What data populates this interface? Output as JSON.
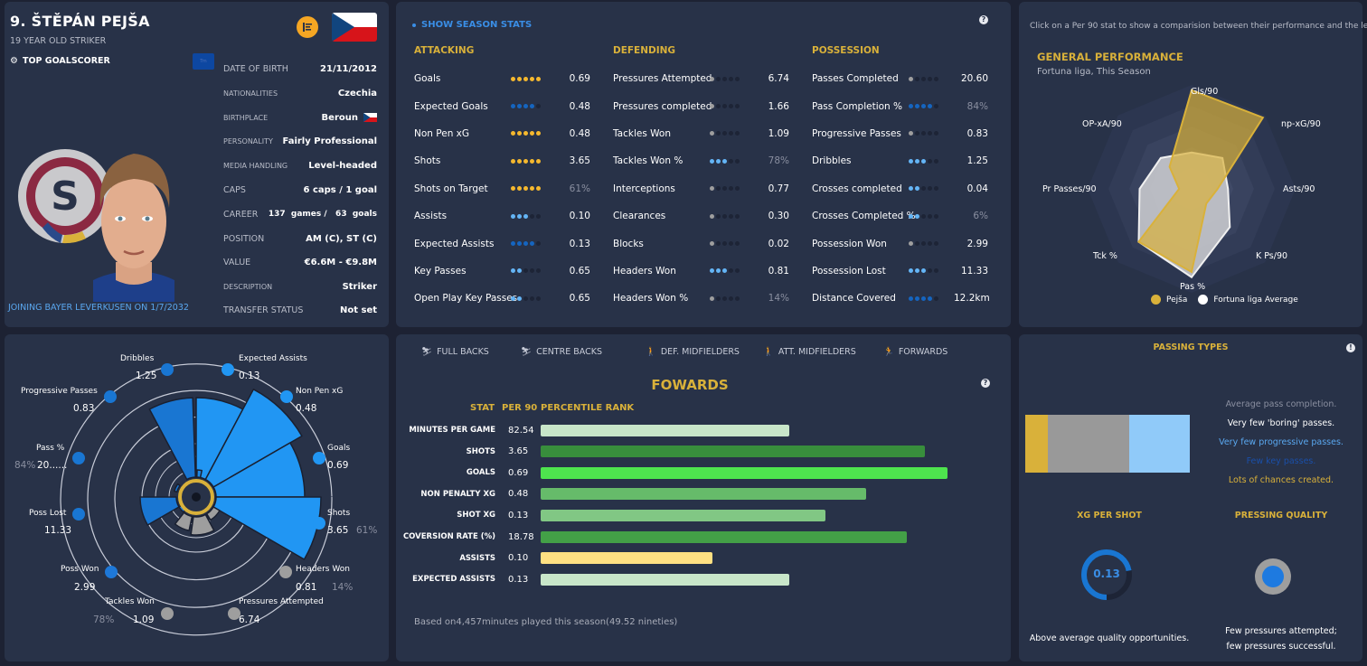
{
  "profile": {
    "name": "9. ŠTĚPÁN PEJŠA",
    "subtitle": "19 YEAR OLD STRIKER",
    "award": "TOP GOALSCORER",
    "tm_badge": "Trn",
    "joining": "JOINING BAYER LEVERKUSEN ON 1/7/2032",
    "info": [
      {
        "label": "DATE OF BIRTH",
        "value": "21/11/2012"
      },
      {
        "label": "NATIONALITIES",
        "value": "Czechia"
      },
      {
        "label": "BIRTHPLACE",
        "value": "Beroun"
      },
      {
        "label": "PERSONALITY",
        "value": "Fairly Professional"
      },
      {
        "label": "MEDIA HANDLING",
        "value": "Level-headed"
      },
      {
        "label": "CAPS",
        "value": "6 caps / 1 goal"
      },
      {
        "label": "CAREER",
        "value": "137  games /   63  goals"
      },
      {
        "label": "POSITION",
        "value": "AM (C), ST (C)"
      },
      {
        "label": "VALUE",
        "value": "€6.6M - €9.8M"
      },
      {
        "label": "DESCRIPTION",
        "value": "Striker"
      },
      {
        "label": "TRANSFER STATUS",
        "value": "Not set"
      }
    ]
  },
  "season": {
    "toggle_label": "SHOW SEASON STATS",
    "help": "?",
    "columns": [
      {
        "title": "ATTACKING",
        "rows": [
          {
            "label": "Goals",
            "dots": 5,
            "color": "#f5b82e",
            "value": "0.69",
            "pct": false
          },
          {
            "label": "Expected Goals",
            "dots": 4,
            "color": "#1565c0",
            "value": "0.48",
            "pct": false
          },
          {
            "label": "Non Pen xG",
            "dots": 5,
            "color": "#f5b82e",
            "value": "0.48",
            "pct": false
          },
          {
            "label": "Shots",
            "dots": 5,
            "color": "#f5b82e",
            "value": "3.65",
            "pct": false
          },
          {
            "label": "Shots on Target",
            "dots": 5,
            "color": "#f5b82e",
            "value": "61%",
            "pct": true
          },
          {
            "label": "Assists",
            "dots": 3,
            "color": "#64b5f6",
            "value": "0.10",
            "pct": false
          },
          {
            "label": "Expected Assists",
            "dots": 4,
            "color": "#1565c0",
            "value": "0.13",
            "pct": false
          },
          {
            "label": "Key Passes",
            "dots": 2,
            "color": "#64b5f6",
            "value": "0.65",
            "pct": false
          },
          {
            "label": "Open Play Key Passes",
            "dots": 2,
            "color": "#64b5f6",
            "value": "0.65",
            "pct": false
          }
        ]
      },
      {
        "title": "DEFENDING",
        "rows": [
          {
            "label": "Pressures Attempted",
            "dots": 1,
            "color": "#9e9e9e",
            "value": "6.74",
            "pct": false
          },
          {
            "label": "Pressures completed",
            "dots": 1,
            "color": "#9e9e9e",
            "value": "1.66",
            "pct": false
          },
          {
            "label": "Tackles Won",
            "dots": 1,
            "color": "#9e9e9e",
            "value": "1.09",
            "pct": false
          },
          {
            "label": "Tackles Won %",
            "dots": 3,
            "color": "#64b5f6",
            "value": "78%",
            "pct": true
          },
          {
            "label": "Interceptions",
            "dots": 1,
            "color": "#9e9e9e",
            "value": "0.77",
            "pct": false
          },
          {
            "label": "Clearances",
            "dots": 1,
            "color": "#9e9e9e",
            "value": "0.30",
            "pct": false
          },
          {
            "label": "Blocks",
            "dots": 1,
            "color": "#9e9e9e",
            "value": "0.02",
            "pct": false
          },
          {
            "label": "Headers Won",
            "dots": 3,
            "color": "#64b5f6",
            "value": "0.81",
            "pct": false
          },
          {
            "label": "Headers Won %",
            "dots": 1,
            "color": "#9e9e9e",
            "value": "14%",
            "pct": true
          }
        ]
      },
      {
        "title": "POSSESSION",
        "rows": [
          {
            "label": "Passes Completed",
            "dots": 1,
            "color": "#9e9e9e",
            "value": "20.60",
            "pct": false
          },
          {
            "label": "Pass Completion %",
            "dots": 4,
            "color": "#1565c0",
            "value": "84%",
            "pct": true
          },
          {
            "label": "Progressive Passes",
            "dots": 1,
            "color": "#9e9e9e",
            "value": "0.83",
            "pct": false
          },
          {
            "label": "Dribbles",
            "dots": 3,
            "color": "#64b5f6",
            "value": "1.25",
            "pct": false
          },
          {
            "label": "Crosses completed",
            "dots": 2,
            "color": "#64b5f6",
            "value": "0.04",
            "pct": false
          },
          {
            "label": "Crosses Completed %",
            "dots": 2,
            "color": "#64b5f6",
            "value": "6%",
            "pct": true
          },
          {
            "label": "Possession Won",
            "dots": 1,
            "color": "#9e9e9e",
            "value": "2.99",
            "pct": false
          },
          {
            "label": "Possession Lost",
            "dots": 3,
            "color": "#64b5f6",
            "value": "11.33",
            "pct": false
          },
          {
            "label": "Distance Covered",
            "dots": 4,
            "color": "#1565c0",
            "value": "12.2km",
            "pct": false
          }
        ]
      }
    ]
  },
  "general": {
    "hint": "Click on a Per 90 stat to show a comparision between their performance and the league.",
    "title": "GENERAL PERFORMANCE",
    "subtitle": "Fortuna liga, This Season",
    "legend": [
      {
        "label": "Pejša",
        "color": "#d9b13a"
      },
      {
        "label": "Fortuna liga Average",
        "color": "#ffffff"
      }
    ]
  },
  "polar": {
    "items": [
      {
        "label": "Goals",
        "value": "0.69",
        "pct": ""
      },
      {
        "label": "Shots",
        "value": "3.65",
        "pct": "61%"
      },
      {
        "label": "Headers Won",
        "value": "0.81",
        "pct": "14%"
      },
      {
        "label": "Pressures Attempted",
        "value": "6.74",
        "pct": ""
      },
      {
        "label": "Tackles Won",
        "value": "1.09",
        "pct": "78%"
      },
      {
        "label": "Poss Won",
        "value": "2.99",
        "pct": ""
      },
      {
        "label": "Poss Lost",
        "value": "11.33",
        "pct": ""
      },
      {
        "label": "Pass %",
        "value": "20......",
        "pct": "84%"
      },
      {
        "label": "Progressive Passes",
        "value": "0.83",
        "pct": ""
      },
      {
        "label": "Dribbles",
        "value": "1.25",
        "pct": ""
      },
      {
        "label": "Expected Assists",
        "value": "0.13",
        "pct": ""
      },
      {
        "label": "Non Pen xG",
        "value": "0.48",
        "pct": ""
      }
    ],
    "center_icon": "?"
  },
  "positional": {
    "tabs": [
      {
        "label": "FULL BACKS",
        "icon": "sliding-tackle-icon"
      },
      {
        "label": "CENTRE BACKS",
        "icon": "sliding-tackle-icon"
      },
      {
        "label": "DEF. MIDFIELDERS",
        "icon": "player-icon"
      },
      {
        "label": "ATT. MIDFIELDERS",
        "icon": "player-icon"
      },
      {
        "label": "FORWARDS",
        "icon": "running-icon"
      }
    ],
    "title": "FOWARDS",
    "help": "?",
    "head_stat": "STAT",
    "head_per90": "PER 90",
    "head_rank": "PERCENTILE RANK",
    "footer": "Based on4,457minutes played this season(49.52 nineties)"
  },
  "chart_data": {
    "type": "bar",
    "title": "FOWARDS",
    "xlabel": "PERCENTILE RANK",
    "ylabel": "STAT",
    "xlim": [
      0,
      100
    ],
    "categories": [
      "MINUTES PER GAME",
      "SHOTS",
      "GOALS",
      "NON PENALTY XG",
      "SHOT XG",
      "COVERSION RATE (%)",
      "ASSISTS",
      "EXPECTED ASSISTS"
    ],
    "per90": [
      "82.54",
      "3.65",
      "0.69",
      "0.48",
      "0.13",
      "18.78",
      "0.10",
      "0.13"
    ],
    "values": [
      55,
      85,
      90,
      72,
      63,
      81,
      38,
      55
    ],
    "colors": [
      "#c8e6c9",
      "#388e3c",
      "#4ee44e",
      "#66bb6a",
      "#81c784",
      "#43a047",
      "#ffe082",
      "#c8e6c9"
    ]
  },
  "radar": {
    "axes": [
      "Gls/90",
      "np-xG/90",
      "Asts/90",
      "K Ps/90",
      "Pas %",
      "Tck %",
      "Pr Passes/90",
      "OP-xA/90"
    ],
    "player": [
      0.95,
      0.97,
      0.25,
      0.2,
      0.8,
      0.72,
      0.12,
      0.3
    ],
    "league": [
      0.35,
      0.42,
      0.35,
      0.52,
      0.85,
      0.72,
      0.5,
      0.42
    ]
  },
  "passing": {
    "title": "PASSING TYPES",
    "help": "!",
    "segments": [
      {
        "share": 0.14,
        "color": "#d9b13a"
      },
      {
        "share": 0.49,
        "color": "#999999"
      },
      {
        "share": 0.37,
        "color": "#90caf9"
      }
    ],
    "descriptions": [
      {
        "text": "Average pass completion.",
        "color": "#8a8fa0"
      },
      {
        "text": "Very few 'boring' passes.",
        "color": "#ffffff"
      },
      {
        "text": "Very few progressive passes.",
        "color": "#5aa8f0"
      },
      {
        "text": "Few key passes.",
        "color": "#1a4fa8"
      },
      {
        "text": "Lots of chances created.",
        "color": "#d9b13a"
      }
    ],
    "xg_title": "XG PER SHOT",
    "xg_value": "0.13",
    "xg_fill": 0.72,
    "xg_desc": "Above average quality opportunities.",
    "press_title": "PRESSING QUALITY",
    "press_desc_1": "Few pressures attempted;",
    "press_desc_2": "few pressures successful."
  }
}
